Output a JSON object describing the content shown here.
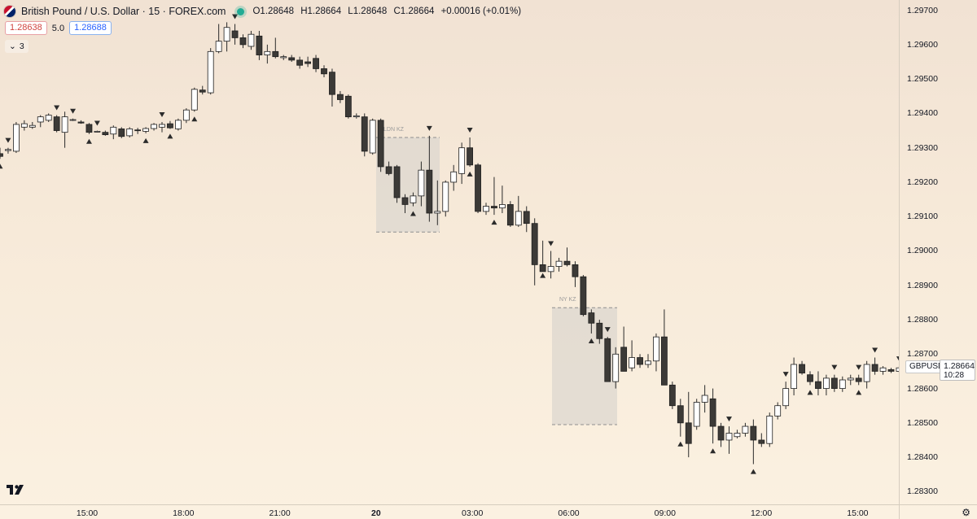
{
  "legend": {
    "title": "British Pound / U.S. Dollar · 15 · FOREX.com",
    "open_label": "O",
    "open": "1.28648",
    "high_label": "H",
    "high": "1.28664",
    "low_label": "L",
    "low": "1.28648",
    "close_label": "C",
    "close": "1.28664",
    "change": "+0.00016 (+0.01%)"
  },
  "trade": {
    "sell": "1.28638",
    "spread": "5.0",
    "buy": "1.28688"
  },
  "indicators_toggle": {
    "label": "3"
  },
  "price_axis": {
    "ticks": [
      "1.29700",
      "1.29600",
      "1.29500",
      "1.29400",
      "1.29300",
      "1.29200",
      "1.29100",
      "1.29000",
      "1.28900",
      "1.28800",
      "1.28700",
      "1.28600",
      "1.28500",
      "1.28400",
      "1.28300"
    ],
    "last_price": "1.28664",
    "countdown": "10:28",
    "symbol": "GBPUSD"
  },
  "time_axis": {
    "ticks": [
      {
        "label": "15:00",
        "bold": false
      },
      {
        "label": "18:00",
        "bold": false
      },
      {
        "label": "21:00",
        "bold": false
      },
      {
        "label": "20",
        "bold": true
      },
      {
        "label": "03:00",
        "bold": false
      },
      {
        "label": "06:00",
        "bold": false
      },
      {
        "label": "09:00",
        "bold": false
      },
      {
        "label": "12:00",
        "bold": false
      },
      {
        "label": "15:00",
        "bold": false
      }
    ]
  },
  "sessions": [
    {
      "label": "LDN KZ",
      "high": 1.2933,
      "low": 1.29055
    },
    {
      "label": "NY KZ",
      "high": 1.28835,
      "low": 1.28495
    }
  ],
  "colors": {
    "up_body": "#ffffff",
    "down_body": "#3c3a37",
    "wick": "#2a2a2a",
    "session_fill": "#dcd7cf",
    "session_border": "#8f8f8f"
  },
  "chart_data": {
    "type": "candlestick",
    "symbol": "GBPUSD",
    "timeframe": "15",
    "candles": [
      {
        "o": 1.29283,
        "h": 1.293,
        "l": 1.29268,
        "c": 1.29275
      },
      {
        "o": 1.29292,
        "h": 1.293,
        "l": 1.29283,
        "c": 1.29295
      },
      {
        "o": 1.2929,
        "h": 1.29375,
        "l": 1.29285,
        "c": 1.29368
      },
      {
        "o": 1.2936,
        "h": 1.2938,
        "l": 1.2935,
        "c": 1.2937
      },
      {
        "o": 1.2936,
        "h": 1.29375,
        "l": 1.29355,
        "c": 1.29365
      },
      {
        "o": 1.29375,
        "h": 1.29395,
        "l": 1.2936,
        "c": 1.2939
      },
      {
        "o": 1.2938,
        "h": 1.294,
        "l": 1.29375,
        "c": 1.29395
      },
      {
        "o": 1.2939,
        "h": 1.29395,
        "l": 1.29345,
        "c": 1.2935
      },
      {
        "o": 1.29345,
        "h": 1.29405,
        "l": 1.293,
        "c": 1.2939
      },
      {
        "o": 1.2938,
        "h": 1.29385,
        "l": 1.29378,
        "c": 1.29382
      },
      {
        "o": 1.29375,
        "h": 1.2938,
        "l": 1.2937,
        "c": 1.29372
      },
      {
        "o": 1.29368,
        "h": 1.29372,
        "l": 1.2934,
        "c": 1.29345
      },
      {
        "o": 1.29348,
        "h": 1.2935,
        "l": 1.29345,
        "c": 1.29348
      },
      {
        "o": 1.29345,
        "h": 1.2935,
        "l": 1.29335,
        "c": 1.29338
      },
      {
        "o": 1.2934,
        "h": 1.29365,
        "l": 1.29325,
        "c": 1.2936
      },
      {
        "o": 1.29355,
        "h": 1.2936,
        "l": 1.29328,
        "c": 1.29333
      },
      {
        "o": 1.29335,
        "h": 1.2936,
        "l": 1.2933,
        "c": 1.29355
      },
      {
        "o": 1.29352,
        "h": 1.29358,
        "l": 1.2934,
        "c": 1.2935
      },
      {
        "o": 1.29348,
        "h": 1.2936,
        "l": 1.29342,
        "c": 1.29356
      },
      {
        "o": 1.29356,
        "h": 1.29372,
        "l": 1.2935,
        "c": 1.29368
      },
      {
        "o": 1.2936,
        "h": 1.29375,
        "l": 1.29345,
        "c": 1.29368
      },
      {
        "o": 1.2937,
        "h": 1.29378,
        "l": 1.29355,
        "c": 1.29358
      },
      {
        "o": 1.29355,
        "h": 1.29385,
        "l": 1.2935,
        "c": 1.2938
      },
      {
        "o": 1.2938,
        "h": 1.29415,
        "l": 1.29372,
        "c": 1.2941
      },
      {
        "o": 1.2941,
        "h": 1.29475,
        "l": 1.29405,
        "c": 1.2947
      },
      {
        "o": 1.29468,
        "h": 1.2948,
        "l": 1.29455,
        "c": 1.29462
      },
      {
        "o": 1.2946,
        "h": 1.2959,
        "l": 1.29455,
        "c": 1.2958
      },
      {
        "o": 1.2958,
        "h": 1.2966,
        "l": 1.29575,
        "c": 1.2961
      },
      {
        "o": 1.2961,
        "h": 1.29665,
        "l": 1.2958,
        "c": 1.2965
      },
      {
        "o": 1.2964,
        "h": 1.2966,
        "l": 1.296,
        "c": 1.2962
      },
      {
        "o": 1.2962,
        "h": 1.2963,
        "l": 1.2959,
        "c": 1.296
      },
      {
        "o": 1.29595,
        "h": 1.2964,
        "l": 1.29585,
        "c": 1.2963
      },
      {
        "o": 1.29625,
        "h": 1.2964,
        "l": 1.29555,
        "c": 1.2957
      },
      {
        "o": 1.2957,
        "h": 1.296,
        "l": 1.29545,
        "c": 1.2958
      },
      {
        "o": 1.2958,
        "h": 1.2962,
        "l": 1.2956,
        "c": 1.29565
      },
      {
        "o": 1.29562,
        "h": 1.2957,
        "l": 1.29555,
        "c": 1.29565
      },
      {
        "o": 1.29562,
        "h": 1.2957,
        "l": 1.2955,
        "c": 1.29555
      },
      {
        "o": 1.29555,
        "h": 1.29565,
        "l": 1.2953,
        "c": 1.2954
      },
      {
        "o": 1.2955,
        "h": 1.29565,
        "l": 1.29535,
        "c": 1.29545
      },
      {
        "o": 1.2956,
        "h": 1.2957,
        "l": 1.2952,
        "c": 1.2953
      },
      {
        "o": 1.2953,
        "h": 1.2954,
        "l": 1.29505,
        "c": 1.29515
      },
      {
        "o": 1.2952,
        "h": 1.2953,
        "l": 1.2942,
        "c": 1.29455
      },
      {
        "o": 1.29455,
        "h": 1.29465,
        "l": 1.2943,
        "c": 1.2944
      },
      {
        "o": 1.2945,
        "h": 1.29455,
        "l": 1.29385,
        "c": 1.2939
      },
      {
        "o": 1.2939,
        "h": 1.294,
        "l": 1.29385,
        "c": 1.29393
      },
      {
        "o": 1.2939,
        "h": 1.294,
        "l": 1.29275,
        "c": 1.2929
      },
      {
        "o": 1.29285,
        "h": 1.29385,
        "l": 1.2928,
        "c": 1.2938
      },
      {
        "o": 1.2938,
        "h": 1.29385,
        "l": 1.2923,
        "c": 1.29245
      },
      {
        "o": 1.29245,
        "h": 1.2926,
        "l": 1.2922,
        "c": 1.29225
      },
      {
        "o": 1.29245,
        "h": 1.2925,
        "l": 1.2914,
        "c": 1.29155
      },
      {
        "o": 1.29155,
        "h": 1.29165,
        "l": 1.2911,
        "c": 1.29135
      },
      {
        "o": 1.2914,
        "h": 1.2917,
        "l": 1.2913,
        "c": 1.2916
      },
      {
        "o": 1.2916,
        "h": 1.2926,
        "l": 1.2913,
        "c": 1.29235
      },
      {
        "o": 1.29235,
        "h": 1.29335,
        "l": 1.29085,
        "c": 1.2911
      },
      {
        "o": 1.2911,
        "h": 1.29205,
        "l": 1.29075,
        "c": 1.29115
      },
      {
        "o": 1.29115,
        "h": 1.29205,
        "l": 1.291,
        "c": 1.292
      },
      {
        "o": 1.292,
        "h": 1.2925,
        "l": 1.29175,
        "c": 1.2923
      },
      {
        "o": 1.29225,
        "h": 1.29315,
        "l": 1.29195,
        "c": 1.293
      },
      {
        "o": 1.293,
        "h": 1.2933,
        "l": 1.29245,
        "c": 1.2925
      },
      {
        "o": 1.2925,
        "h": 1.29255,
        "l": 1.2911,
        "c": 1.29115
      },
      {
        "o": 1.29115,
        "h": 1.2914,
        "l": 1.29105,
        "c": 1.2913
      },
      {
        "o": 1.2913,
        "h": 1.29215,
        "l": 1.29105,
        "c": 1.29125
      },
      {
        "o": 1.29125,
        "h": 1.2919,
        "l": 1.2911,
        "c": 1.29135
      },
      {
        "o": 1.29135,
        "h": 1.29145,
        "l": 1.2907,
        "c": 1.29075
      },
      {
        "o": 1.29075,
        "h": 1.2916,
        "l": 1.2907,
        "c": 1.29115
      },
      {
        "o": 1.29115,
        "h": 1.2913,
        "l": 1.29055,
        "c": 1.2908
      },
      {
        "o": 1.2908,
        "h": 1.29095,
        "l": 1.289,
        "c": 1.2896
      },
      {
        "o": 1.2896,
        "h": 1.2903,
        "l": 1.2895,
        "c": 1.2894
      },
      {
        "o": 1.2894,
        "h": 1.29,
        "l": 1.2892,
        "c": 1.28955
      },
      {
        "o": 1.28955,
        "h": 1.2898,
        "l": 1.2894,
        "c": 1.2897
      },
      {
        "o": 1.2897,
        "h": 1.2901,
        "l": 1.28955,
        "c": 1.2896
      },
      {
        "o": 1.2896,
        "h": 1.2897,
        "l": 1.28895,
        "c": 1.28925
      },
      {
        "o": 1.28925,
        "h": 1.2893,
        "l": 1.2881,
        "c": 1.28815
      },
      {
        "o": 1.2882,
        "h": 1.2883,
        "l": 1.2876,
        "c": 1.2879
      },
      {
        "o": 1.2879,
        "h": 1.288,
        "l": 1.2873,
        "c": 1.28745
      },
      {
        "o": 1.28745,
        "h": 1.2875,
        "l": 1.2862,
        "c": 1.2862
      },
      {
        "o": 1.2862,
        "h": 1.2872,
        "l": 1.286,
        "c": 1.287
      },
      {
        "o": 1.2872,
        "h": 1.2878,
        "l": 1.2865,
        "c": 1.2865
      },
      {
        "o": 1.2866,
        "h": 1.2874,
        "l": 1.2865,
        "c": 1.2869
      },
      {
        "o": 1.2869,
        "h": 1.287,
        "l": 1.2866,
        "c": 1.2867
      },
      {
        "o": 1.2867,
        "h": 1.287,
        "l": 1.2866,
        "c": 1.2868
      },
      {
        "o": 1.2868,
        "h": 1.2876,
        "l": 1.2865,
        "c": 1.2875
      },
      {
        "o": 1.2875,
        "h": 1.2883,
        "l": 1.2861,
        "c": 1.2861
      },
      {
        "o": 1.2861,
        "h": 1.2862,
        "l": 1.2854,
        "c": 1.2855
      },
      {
        "o": 1.2855,
        "h": 1.2857,
        "l": 1.2846,
        "c": 1.285
      },
      {
        "o": 1.285,
        "h": 1.2859,
        "l": 1.284,
        "c": 1.2844
      },
      {
        "o": 1.2849,
        "h": 1.2857,
        "l": 1.2848,
        "c": 1.2856
      },
      {
        "o": 1.2856,
        "h": 1.2861,
        "l": 1.2853,
        "c": 1.2858
      },
      {
        "o": 1.2857,
        "h": 1.286,
        "l": 1.2844,
        "c": 1.2849
      },
      {
        "o": 1.2849,
        "h": 1.285,
        "l": 1.2843,
        "c": 1.2845
      },
      {
        "o": 1.2845,
        "h": 1.2849,
        "l": 1.2841,
        "c": 1.2847
      },
      {
        "o": 1.2846,
        "h": 1.2848,
        "l": 1.28455,
        "c": 1.2847
      },
      {
        "o": 1.2847,
        "h": 1.285,
        "l": 1.2846,
        "c": 1.2849
      },
      {
        "o": 1.2849,
        "h": 1.2851,
        "l": 1.2838,
        "c": 1.2845
      },
      {
        "o": 1.2845,
        "h": 1.2847,
        "l": 1.2843,
        "c": 1.2844
      },
      {
        "o": 1.2844,
        "h": 1.2853,
        "l": 1.2843,
        "c": 1.2852
      },
      {
        "o": 1.2852,
        "h": 1.2856,
        "l": 1.2851,
        "c": 1.2855
      },
      {
        "o": 1.2855,
        "h": 1.2862,
        "l": 1.2854,
        "c": 1.286
      },
      {
        "o": 1.286,
        "h": 1.2869,
        "l": 1.2858,
        "c": 1.2867
      },
      {
        "o": 1.2867,
        "h": 1.2868,
        "l": 1.2864,
        "c": 1.28645
      },
      {
        "o": 1.2864,
        "h": 1.2865,
        "l": 1.2861,
        "c": 1.2862
      },
      {
        "o": 1.2862,
        "h": 1.2865,
        "l": 1.2858,
        "c": 1.286
      },
      {
        "o": 1.286,
        "h": 1.2864,
        "l": 1.2858,
        "c": 1.2863
      },
      {
        "o": 1.2863,
        "h": 1.2864,
        "l": 1.2859,
        "c": 1.286
      },
      {
        "o": 1.286,
        "h": 1.28635,
        "l": 1.2859,
        "c": 1.28625
      },
      {
        "o": 1.28625,
        "h": 1.2864,
        "l": 1.2861,
        "c": 1.2863
      },
      {
        "o": 1.2863,
        "h": 1.2864,
        "l": 1.2861,
        "c": 1.2862
      },
      {
        "o": 1.2862,
        "h": 1.2868,
        "l": 1.286,
        "c": 1.2867
      },
      {
        "o": 1.2867,
        "h": 1.2869,
        "l": 1.2864,
        "c": 1.2865
      },
      {
        "o": 1.2865,
        "h": 1.28665,
        "l": 1.2864,
        "c": 1.2866
      },
      {
        "o": 1.28655,
        "h": 1.2866,
        "l": 1.28645,
        "c": 1.2865
      },
      {
        "o": 1.2865,
        "h": 1.28665,
        "l": 1.28645,
        "c": 1.2866
      },
      {
        "o": 1.2866,
        "h": 1.28675,
        "l": 1.2865,
        "c": 1.28665
      },
      {
        "o": 1.28665,
        "h": 1.2868,
        "l": 1.2865,
        "c": 1.2867
      },
      {
        "o": 1.2867,
        "h": 1.28685,
        "l": 1.2864,
        "c": 1.28645
      },
      {
        "o": 1.28648,
        "h": 1.28664,
        "l": 1.28648,
        "c": 1.28664
      }
    ],
    "down_markers": [
      1,
      7,
      9,
      12,
      20,
      29,
      53,
      58,
      68,
      75,
      90,
      97,
      103,
      106,
      108,
      111,
      115
    ],
    "up_markers": [
      0,
      11,
      18,
      21,
      24,
      51,
      58,
      61,
      67,
      73,
      84,
      88,
      93,
      100,
      106
    ]
  }
}
